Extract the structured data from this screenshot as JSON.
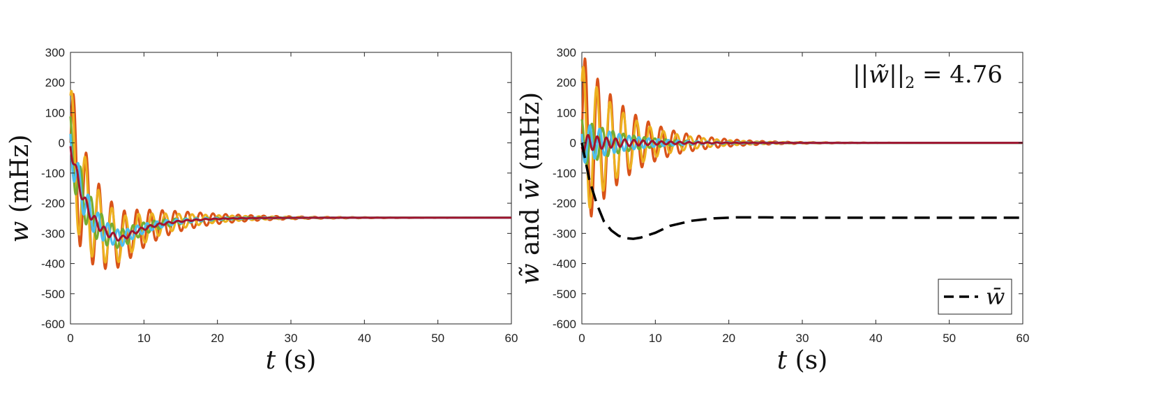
{
  "chart_data": [
    {
      "type": "line",
      "xlabel": {
        "symbol": "t",
        "unit": "(s)"
      },
      "ylabel": {
        "symbol": "w",
        "unit": "(mHz)"
      },
      "xlim": [
        0,
        60
      ],
      "ylim": [
        -600,
        300
      ],
      "xticks": [
        "0",
        "10",
        "20",
        "30",
        "40",
        "50",
        "60"
      ],
      "yticks": [
        "300",
        "200",
        "100",
        "0",
        "-100",
        "-200",
        "-300",
        "-400",
        "-500",
        "-600"
      ],
      "grid": false,
      "series": [
        {
          "color": "#D95319",
          "envelope_start": 230,
          "envelope_decay": 0.13,
          "freq": 0.58,
          "trend": "settling",
          "final": -248
        },
        {
          "color": "#EDB120",
          "envelope_start": 200,
          "envelope_decay": 0.14,
          "freq": 0.55,
          "trend": "settling",
          "final": -248
        },
        {
          "color": "#77AC30",
          "envelope_start": 90,
          "envelope_decay": 0.15,
          "freq": 0.7,
          "trend": "settling",
          "final": -248
        },
        {
          "color": "#4DBEEE",
          "envelope_start": 70,
          "envelope_decay": 0.15,
          "freq": 0.75,
          "trend": "settling",
          "final": -248
        },
        {
          "color": "#A2142F",
          "envelope_start": 25,
          "envelope_decay": 0.15,
          "freq": 0.8,
          "trend": "settling",
          "final": -248
        }
      ],
      "settled_value": -248
    },
    {
      "type": "line",
      "xlabel": {
        "symbol": "t",
        "unit": "(s)"
      },
      "ylabel": {
        "symbol_a": "w̃",
        "conj": "and",
        "symbol_b": "w̄",
        "unit": "(mHz)"
      },
      "xlim": [
        0,
        60
      ],
      "ylim": [
        -600,
        300
      ],
      "xticks": [
        "0",
        "10",
        "20",
        "30",
        "40",
        "50",
        "60"
      ],
      "yticks": [
        "300",
        "200",
        "100",
        "0",
        "-100",
        "-200",
        "-300",
        "-400",
        "-500",
        "-600"
      ],
      "grid": false,
      "annotation": {
        "text_left": "||w̃||",
        "subscript": "2",
        "text_right": " = 4.76"
      },
      "legend": {
        "position": "bottom-right",
        "entries": [
          {
            "label": "w̄",
            "style": "dashed",
            "color": "#000000"
          }
        ]
      },
      "series": [
        {
          "color": "#D95319",
          "envelope_start": 300,
          "envelope_decay": 0.16,
          "freq": 0.58,
          "trend": "zero"
        },
        {
          "color": "#EDB120",
          "envelope_start": 260,
          "envelope_decay": 0.17,
          "freq": 0.55,
          "trend": "zero"
        },
        {
          "color": "#77AC30",
          "envelope_start": 80,
          "envelope_decay": 0.17,
          "freq": 0.7,
          "trend": "zero"
        },
        {
          "color": "#4DBEEE",
          "envelope_start": 70,
          "envelope_decay": 0.17,
          "freq": 0.75,
          "trend": "zero"
        },
        {
          "color": "#A2142F",
          "envelope_start": 30,
          "envelope_decay": 0.16,
          "freq": 0.8,
          "trend": "zero"
        }
      ],
      "mean_curve": {
        "name": "w̄",
        "color": "#000000",
        "style": "dashed",
        "x": [
          0,
          1,
          2,
          3,
          4,
          5,
          6,
          7,
          8,
          10,
          12,
          15,
          18,
          21,
          25,
          30,
          40,
          50,
          60
        ],
        "y": [
          0,
          -120,
          -200,
          -260,
          -290,
          -308,
          -316,
          -318,
          -314,
          -298,
          -275,
          -258,
          -250,
          -247,
          -247,
          -248,
          -248,
          -248,
          -248
        ]
      }
    }
  ]
}
